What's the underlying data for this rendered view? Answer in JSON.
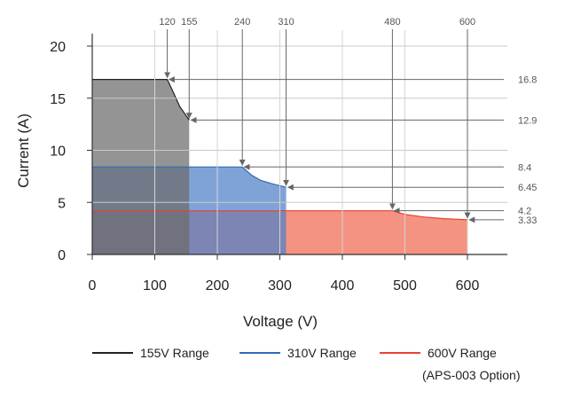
{
  "chart_data": {
    "type": "area",
    "xlabel": "Voltage (V)",
    "ylabel": "Current (A)",
    "xlim": [
      0,
      640
    ],
    "ylim": [
      0,
      22
    ],
    "xticks": [
      0,
      100,
      200,
      300,
      400,
      500,
      600
    ],
    "yticks": [
      0,
      5,
      10,
      15,
      20
    ],
    "series": [
      {
        "name": "155V Range",
        "line_color": "#222222",
        "fill_color": "#6b6b6b",
        "points": [
          [
            0,
            16.8
          ],
          [
            120,
            16.8
          ],
          [
            130,
            15.5
          ],
          [
            140,
            14.2
          ],
          [
            155,
            12.9
          ],
          [
            155,
            0
          ],
          [
            0,
            0
          ]
        ]
      },
      {
        "name": "310V Range",
        "line_color": "#2f6db5",
        "fill_color": "#4f7fc7",
        "points": [
          [
            0,
            8.4
          ],
          [
            240,
            8.4
          ],
          [
            255,
            7.6
          ],
          [
            270,
            7.1
          ],
          [
            290,
            6.75
          ],
          [
            310,
            6.45
          ],
          [
            310,
            0
          ],
          [
            0,
            0
          ]
        ]
      },
      {
        "name": "600V Range",
        "name_extra": "(APS-003 Option)",
        "line_color": "#e8412f",
        "fill_color": "#f06a50",
        "points": [
          [
            0,
            4.2
          ],
          [
            480,
            4.2
          ],
          [
            500,
            3.85
          ],
          [
            530,
            3.6
          ],
          [
            560,
            3.45
          ],
          [
            600,
            3.33
          ],
          [
            600,
            0
          ],
          [
            0,
            0
          ]
        ]
      }
    ],
    "top_annotations": [
      "120",
      "155",
      "240",
      "310",
      "480",
      "600"
    ],
    "right_annotations": [
      "16.8",
      "12.9",
      "8.4",
      "6.45",
      "4.2",
      "3.33"
    ]
  }
}
